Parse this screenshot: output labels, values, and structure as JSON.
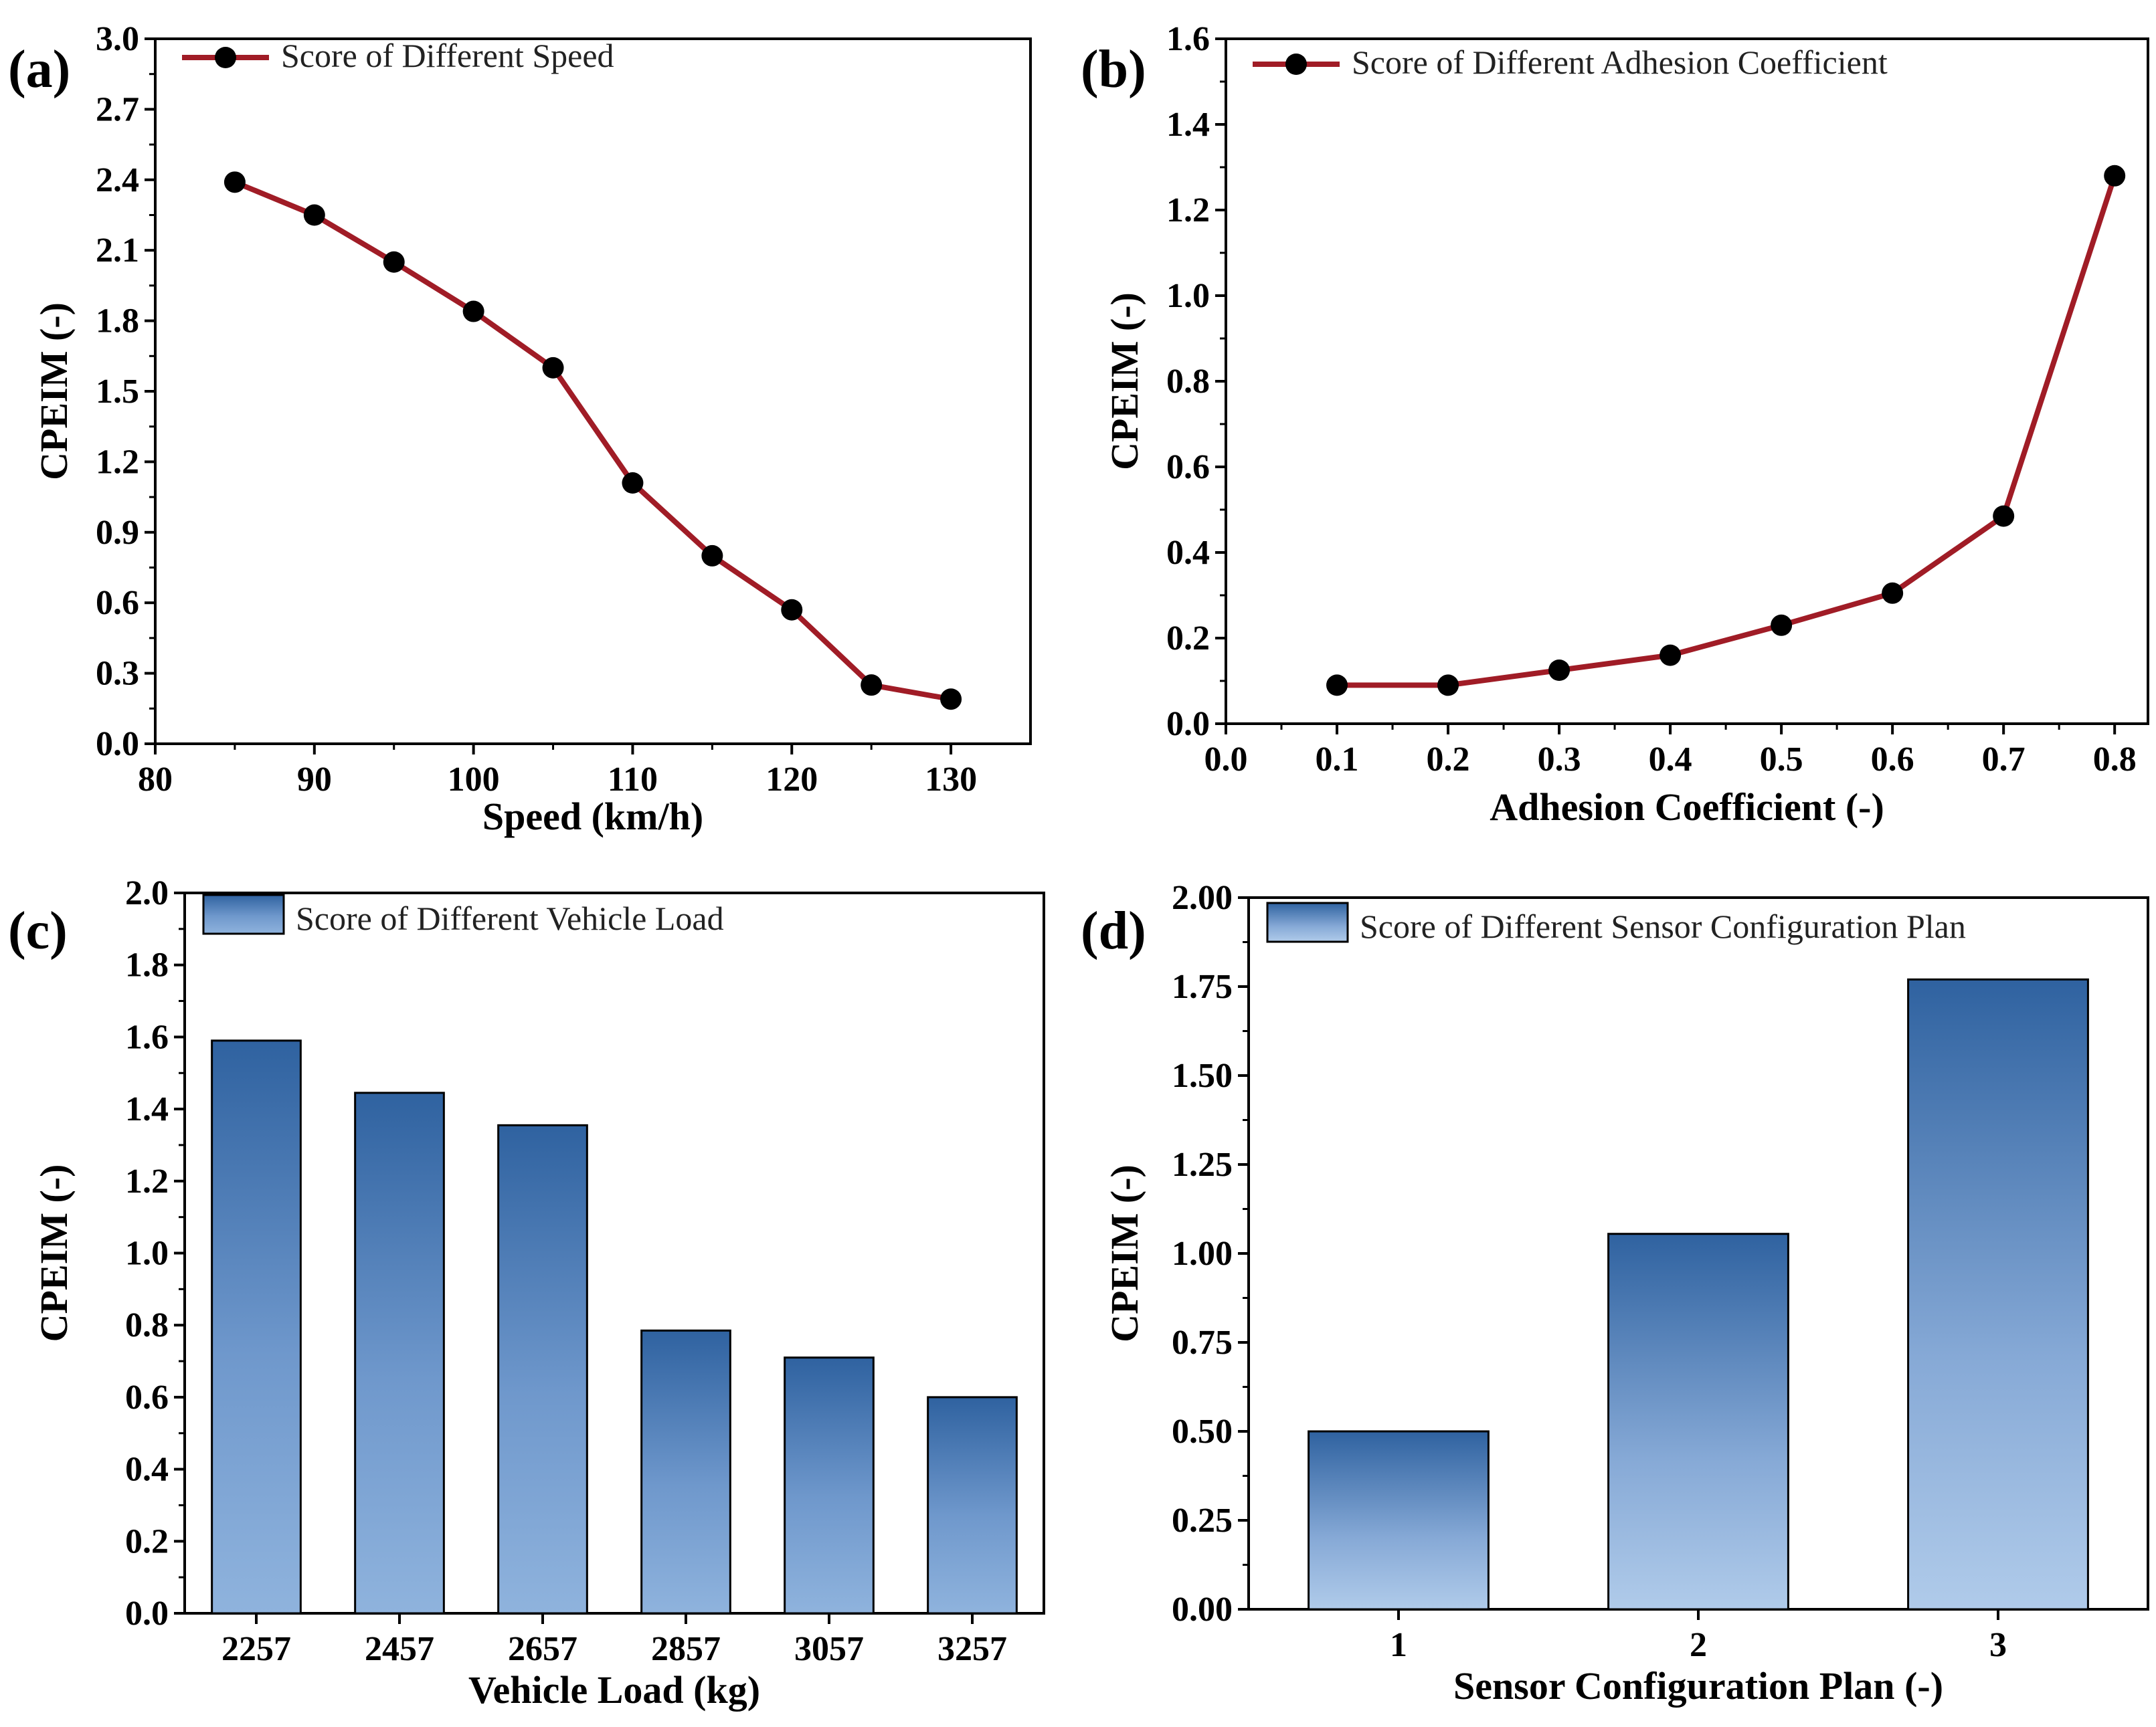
{
  "colors": {
    "line": "#a01c26",
    "marker": "#000000",
    "bar_top": "#2f62a0",
    "bar_bottom_c": "#8fb3dd",
    "bar_bottom_d": "#b0cbea"
  },
  "chart_data": [
    {
      "type": "line",
      "panel": "(a)",
      "xlabel": "Speed (km/h)",
      "ylabel": "CPEIM (-)",
      "xlim": [
        80,
        135
      ],
      "ylim": [
        0,
        3.0
      ],
      "xticks": [
        "80",
        "90",
        "100",
        "110",
        "120",
        "130"
      ],
      "xtick_values": [
        80,
        90,
        100,
        110,
        120,
        130
      ],
      "yticks": [
        "0.0",
        "0.3",
        "0.6",
        "0.9",
        "1.2",
        "1.5",
        "1.8",
        "2.1",
        "2.4",
        "2.7",
        "3.0"
      ],
      "ytick_values": [
        0,
        0.3,
        0.6,
        0.9,
        1.2,
        1.5,
        1.8,
        2.1,
        2.4,
        2.7,
        3.0
      ],
      "legend": "Score of Different Speed",
      "x": [
        85,
        90,
        95,
        100,
        105,
        110,
        115,
        120,
        125,
        130
      ],
      "y": [
        2.39,
        2.25,
        2.05,
        1.84,
        1.6,
        1.11,
        0.8,
        0.57,
        0.25,
        0.19
      ]
    },
    {
      "type": "line",
      "panel": "(b)",
      "xlabel": "Adhesion Coefficient (-)",
      "ylabel": "CPEIM (-)",
      "xlim": [
        0,
        0.83
      ],
      "ylim": [
        0,
        1.6
      ],
      "xticks": [
        "0.0",
        "0.1",
        "0.2",
        "0.3",
        "0.4",
        "0.5",
        "0.6",
        "0.7",
        "0.8"
      ],
      "xtick_values": [
        0,
        0.1,
        0.2,
        0.3,
        0.4,
        0.5,
        0.6,
        0.7,
        0.8
      ],
      "yticks": [
        "0.0",
        "0.2",
        "0.4",
        "0.6",
        "0.8",
        "1.0",
        "1.2",
        "1.4",
        "1.6"
      ],
      "ytick_values": [
        0,
        0.2,
        0.4,
        0.6,
        0.8,
        1.0,
        1.2,
        1.4,
        1.6
      ],
      "legend": "Score of Different Adhesion Coefficient",
      "x": [
        0.1,
        0.2,
        0.3,
        0.4,
        0.5,
        0.6,
        0.7,
        0.8
      ],
      "y": [
        0.09,
        0.09,
        0.125,
        0.16,
        0.23,
        0.305,
        0.485,
        1.28
      ]
    },
    {
      "type": "bar",
      "panel": "(c)",
      "xlabel": "Vehicle Load (kg)",
      "ylabel": "CPEIM (-)",
      "ylim": [
        0,
        2.0
      ],
      "yticks": [
        "0.0",
        "0.2",
        "0.4",
        "0.6",
        "0.8",
        "1.0",
        "1.2",
        "1.4",
        "1.6",
        "1.8",
        "2.0"
      ],
      "ytick_values": [
        0,
        0.2,
        0.4,
        0.6,
        0.8,
        1.0,
        1.2,
        1.4,
        1.6,
        1.8,
        2.0
      ],
      "legend": "Score of Different Vehicle Load",
      "categories": [
        "2257",
        "2457",
        "2657",
        "2857",
        "3057",
        "3257"
      ],
      "values": [
        1.59,
        1.445,
        1.355,
        0.785,
        0.71,
        0.6
      ]
    },
    {
      "type": "bar",
      "panel": "(d)",
      "xlabel": "Sensor Configuration Plan (-)",
      "ylabel": "CPEIM (-)",
      "ylim": [
        0,
        2.0
      ],
      "yticks": [
        "0.00",
        "0.25",
        "0.50",
        "0.75",
        "1.00",
        "1.25",
        "1.50",
        "1.75",
        "2.00"
      ],
      "ytick_values": [
        0,
        0.25,
        0.5,
        0.75,
        1.0,
        1.25,
        1.5,
        1.75,
        2.0
      ],
      "legend": "Score of Different Sensor Configuration Plan",
      "categories": [
        "1",
        "2",
        "3"
      ],
      "values": [
        0.5,
        1.055,
        1.77
      ]
    }
  ]
}
